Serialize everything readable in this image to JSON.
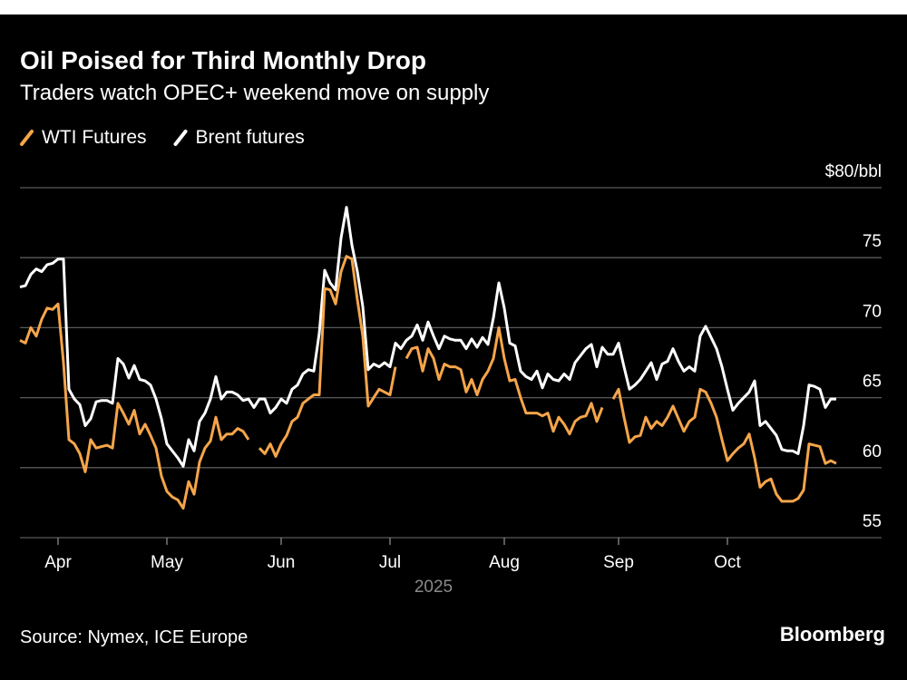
{
  "chart_data": {
    "type": "line",
    "title": "Oil Poised for Third Monthly Drop",
    "subtitle": "Traders watch OPEC+ weekend move on supply",
    "xlabel": "2025",
    "source": "Source: Nymex, ICE Europe",
    "brand": "Bloomberg",
    "categories": [
      null,
      null,
      null,
      null,
      null,
      null,
      null,
      "Apr",
      null,
      null,
      null,
      null,
      null,
      null,
      null,
      null,
      null,
      null,
      null,
      null,
      null,
      null,
      null,
      null,
      null,
      null,
      null,
      "May",
      null,
      null,
      null,
      null,
      null,
      null,
      null,
      null,
      null,
      null,
      null,
      null,
      null,
      null,
      null,
      null,
      null,
      null,
      null,
      null,
      "Jun",
      null,
      null,
      null,
      null,
      null,
      null,
      null,
      null,
      null,
      null,
      null,
      null,
      null,
      null,
      null,
      null,
      null,
      null,
      null,
      "Jul",
      null,
      null,
      null,
      null,
      null,
      null,
      null,
      null,
      null,
      null,
      null,
      null,
      null,
      null,
      null,
      null,
      null,
      null,
      null,
      null,
      "Aug",
      null,
      null,
      null,
      null,
      null,
      null,
      null,
      null,
      null,
      null,
      null,
      null,
      null,
      null,
      null,
      null,
      null,
      null,
      null,
      null,
      "Sep",
      null,
      null,
      null,
      null,
      null,
      null,
      null,
      null,
      null,
      null,
      null,
      null,
      null,
      null,
      null,
      null,
      null,
      null,
      null,
      "Oct",
      null,
      null,
      null,
      null,
      null,
      null,
      null,
      null,
      null,
      null,
      null,
      null,
      null,
      null,
      null,
      null,
      null,
      null,
      null,
      null
    ],
    "series": [
      {
        "name": "WTI Futures",
        "color": "#f5a54a",
        "values": [
          69.1,
          68.9,
          70.0,
          69.4,
          70.6,
          71.4,
          71.3,
          71.7,
          67.5,
          62.0,
          61.7,
          61.0,
          59.7,
          62.0,
          61.4,
          61.5,
          61.6,
          61.4,
          64.6,
          63.9,
          63.1,
          64.1,
          62.4,
          63.1,
          62.3,
          61.4,
          59.4,
          58.3,
          57.9,
          57.7,
          57.1,
          59.0,
          58.1,
          60.4,
          61.4,
          61.9,
          63.6,
          62.0,
          62.4,
          62.4,
          62.8,
          62.6,
          62.0,
          null,
          61.4,
          61.0,
          61.7,
          60.8,
          61.7,
          62.3,
          63.3,
          63.6,
          64.6,
          64.9,
          65.2,
          65.2,
          72.8,
          72.7,
          71.7,
          74.0,
          75.1,
          74.9,
          72.0,
          69.4,
          64.4,
          65.0,
          65.6,
          65.4,
          65.2,
          67.2,
          null,
          67.8,
          68.5,
          68.6,
          66.9,
          68.5,
          67.8,
          66.3,
          67.4,
          67.2,
          67.2,
          67.0,
          65.4,
          66.3,
          65.2,
          66.3,
          66.9,
          67.8,
          70.0,
          67.8,
          66.2,
          66.3,
          65.0,
          63.9,
          63.9,
          63.9,
          63.7,
          63.9,
          62.6,
          63.6,
          63.1,
          62.4,
          63.3,
          63.6,
          63.7,
          64.6,
          63.3,
          64.3,
          null,
          64.9,
          65.6,
          63.6,
          61.8,
          62.2,
          62.3,
          63.6,
          62.8,
          63.3,
          63.0,
          63.6,
          64.4,
          63.5,
          62.6,
          63.3,
          63.6,
          65.6,
          65.4,
          64.6,
          63.6,
          62.0,
          60.5,
          61.0,
          61.4,
          61.7,
          62.4,
          60.7,
          58.6,
          59.0,
          59.2,
          58.1,
          57.6,
          57.6,
          57.6,
          57.8,
          58.4,
          61.7,
          61.6,
          61.5,
          60.3,
          60.5,
          60.3
        ]
      },
      {
        "name": "Brent futures",
        "color": "#ffffff",
        "values": [
          72.9,
          73.0,
          73.8,
          74.2,
          74.0,
          74.5,
          74.6,
          74.9,
          74.9,
          65.6,
          64.9,
          64.5,
          63.0,
          63.5,
          64.7,
          64.8,
          64.8,
          64.6,
          67.8,
          67.4,
          66.4,
          67.3,
          66.3,
          66.2,
          65.9,
          64.9,
          63.5,
          61.7,
          61.2,
          60.7,
          60.1,
          62.0,
          61.2,
          63.3,
          63.9,
          64.9,
          66.5,
          64.9,
          65.4,
          65.4,
          65.2,
          64.8,
          64.9,
          64.3,
          64.9,
          64.9,
          63.9,
          64.3,
          64.9,
          64.6,
          65.6,
          65.9,
          66.7,
          67.0,
          66.9,
          69.6,
          74.1,
          73.2,
          72.7,
          76.4,
          78.6,
          75.9,
          74.0,
          71.5,
          67.0,
          67.4,
          67.2,
          67.5,
          67.2,
          68.9,
          68.5,
          69.1,
          69.4,
          70.2,
          69.1,
          70.4,
          69.4,
          68.5,
          69.4,
          69.2,
          69.1,
          69.1,
          68.5,
          69.2,
          68.6,
          69.3,
          68.8,
          70.7,
          73.2,
          71.4,
          68.9,
          68.7,
          66.9,
          66.5,
          66.3,
          66.9,
          65.7,
          66.7,
          66.3,
          66.2,
          66.7,
          66.3,
          67.5,
          68.0,
          68.5,
          68.8,
          67.2,
          68.6,
          68.1,
          68.1,
          68.9,
          67.2,
          65.6,
          65.9,
          66.3,
          66.9,
          67.5,
          66.3,
          67.4,
          67.6,
          68.5,
          67.6,
          66.9,
          67.2,
          66.9,
          69.4,
          70.1,
          69.3,
          68.5,
          67.2,
          65.6,
          64.1,
          64.6,
          65.0,
          65.4,
          66.2,
          63.0,
          63.3,
          62.8,
          62.3,
          61.3,
          61.2,
          61.2,
          61.0,
          63.0,
          65.9,
          65.8,
          65.6,
          64.3,
          64.9,
          64.9
        ]
      }
    ],
    "ylim": [
      55,
      80
    ],
    "yticks": [
      55,
      60,
      65,
      70,
      75,
      {
        "value": 80,
        "label": "$80/bbl"
      }
    ],
    "grid": true
  }
}
